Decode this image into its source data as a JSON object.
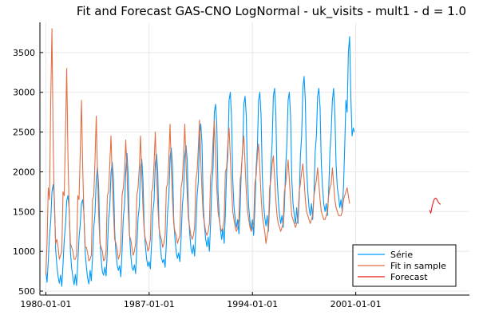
{
  "chart_data": {
    "type": "line",
    "title": "Fit and Forecast GAS-CNO LogNormal - uk_visits - mult1 - d = 1.0",
    "xlabel": "",
    "ylabel": "",
    "x_ticks": [
      "1980-01-01",
      "1987-01-01",
      "1994-01-01",
      "2001-01-01"
    ],
    "x_tick_years": [
      1980,
      1987,
      1994,
      2001
    ],
    "xlim": [
      1979.6,
      2008.7
    ],
    "y_ticks": [
      500,
      1000,
      1500,
      2000,
      2500,
      3000,
      3500
    ],
    "ylim": [
      450,
      3880
    ],
    "grid": true,
    "legend_position": "bottom-right",
    "series": [
      {
        "name": "Série",
        "color": "#009AFA",
        "x_start": 1980.0,
        "x_step": 0.08333,
        "values": [
          760,
          610,
          880,
          1200,
          1380,
          1750,
          1840,
          1660,
          1020,
          820,
          680,
          600,
          700,
          560,
          840,
          1150,
          1330,
          1640,
          1700,
          1530,
          1000,
          790,
          670,
          580,
          710,
          570,
          860,
          1170,
          1340,
          1600,
          1650,
          1480,
          990,
          800,
          660,
          590,
          760,
          630,
          930,
          1300,
          1480,
          1900,
          2060,
          1800,
          1150,
          900,
          740,
          700,
          800,
          690,
          1000,
          1400,
          1560,
          1990,
          2120,
          1920,
          1250,
          980,
          830,
          760,
          820,
          680,
          1010,
          1420,
          1580,
          2000,
          2230,
          1950,
          1230,
          970,
          800,
          760,
          830,
          720,
          1060,
          1420,
          1560,
          2050,
          2160,
          1900,
          1300,
          1060,
          900,
          810,
          870,
          780,
          1100,
          1480,
          1640,
          2100,
          2220,
          2000,
          1330,
          1100,
          920,
          860,
          900,
          800,
          1100,
          1500,
          1670,
          2180,
          2300,
          2080,
          1400,
          1160,
          990,
          910,
          980,
          870,
          1170,
          1580,
          1750,
          2200,
          2330,
          2140,
          1480,
          1220,
          1040,
          970,
          1080,
          940,
          1280,
          1700,
          1880,
          2450,
          2600,
          2350,
          1590,
          1320,
          1150,
          1060,
          1180,
          1000,
          1360,
          1850,
          2050,
          2750,
          2850,
          2600,
          1760,
          1440,
          1270,
          1150,
          1290,
          1100,
          1480,
          2000,
          2200,
          2900,
          3000,
          2700,
          1900,
          1560,
          1400,
          1300,
          1400,
          1220,
          1540,
          2050,
          2250,
          2850,
          2950,
          2700,
          1900,
          1550,
          1380,
          1280,
          1400,
          1200,
          1550,
          2050,
          2300,
          2900,
          3000,
          2720,
          1950,
          1600,
          1430,
          1320,
          1450,
          1250,
          1600,
          2100,
          2350,
          2950,
          3050,
          2750,
          1950,
          1650,
          1450,
          1350,
          1450,
          1300,
          1560,
          2050,
          2350,
          2900,
          3000,
          2700,
          1900,
          1600,
          1450,
          1350,
          1550,
          1350,
          1650,
          2200,
          2450,
          3050,
          3200,
          2900,
          2050,
          1750,
          1550,
          1450,
          1600,
          1400,
          1700,
          2250,
          2450,
          2950,
          3050,
          2800,
          2100,
          1800,
          1600,
          1500,
          1600,
          1450,
          1760,
          2250,
          2500,
          2900,
          3050,
          2750,
          2100,
          1800,
          1700,
          1550,
          1650,
          1500,
          1800,
          2300,
          2900,
          2750,
          3500,
          3700,
          2950,
          2450,
          2550,
          2500
        ]
      },
      {
        "name": "Fit in sample",
        "color": "#E26F46",
        "x_start": 1980.0,
        "x_step": 0.08333,
        "values": [
          700,
          1100,
          1800,
          1650,
          2900,
          3800,
          2300,
          1550,
          1100,
          1150,
          1050,
          900,
          950,
          1000,
          1750,
          1700,
          2500,
          3300,
          2200,
          1500,
          1100,
          1050,
          1000,
          900,
          900,
          950,
          1700,
          1650,
          2250,
          2900,
          2050,
          1450,
          1050,
          1050,
          980,
          880,
          900,
          950,
          1650,
          1700,
          2150,
          2700,
          2000,
          1450,
          1100,
          1050,
          1000,
          880,
          900,
          1000,
          1700,
          1750,
          2100,
          2450,
          1900,
          1500,
          1150,
          1100,
          1020,
          900,
          950,
          1050,
          1700,
          1800,
          2000,
          2400,
          2000,
          1500,
          1200,
          1150,
          1050,
          950,
          1000,
          1100,
          1700,
          1800,
          2050,
          2450,
          1950,
          1550,
          1250,
          1150,
          1100,
          1000,
          1050,
          1150,
          1750,
          1800,
          2100,
          2500,
          2000,
          1600,
          1300,
          1200,
          1150,
          1050,
          1100,
          1200,
          1800,
          1850,
          2150,
          2600,
          2050,
          1650,
          1350,
          1250,
          1200,
          1100,
          1150,
          1200,
          1800,
          1900,
          2200,
          2600,
          2100,
          1700,
          1400,
          1300,
          1200,
          1150,
          1200,
          1300,
          1900,
          2000,
          2300,
          2650,
          2150,
          1750,
          1450,
          1350,
          1250,
          1200,
          1250,
          1350,
          1950,
          2050,
          2400,
          2650,
          2200,
          1800,
          1500,
          1400,
          1300,
          1250,
          1300,
          1400,
          2000,
          2050,
          2350,
          2550,
          2200,
          1800,
          1500,
          1400,
          1300,
          1250,
          1300,
          1400,
          1900,
          2000,
          2300,
          2450,
          2100,
          1750,
          1500,
          1400,
          1300,
          1250,
          1300,
          1350,
          1850,
          1950,
          2200,
          2350,
          2050,
          1700,
          1450,
          1350,
          1250,
          1100,
          1200,
          1300,
          1800,
          1900,
          2100,
          2200,
          1950,
          1650,
          1450,
          1350,
          1300,
          1250,
          1300,
          1350,
          1750,
          1850,
          2000,
          2150,
          1900,
          1650,
          1450,
          1400,
          1350,
          1300,
          1350,
          1400,
          1750,
          1850,
          2000,
          2100,
          1900,
          1650,
          1500,
          1450,
          1400,
          1350,
          1400,
          1450,
          1700,
          1800,
          1900,
          2050,
          1850,
          1650,
          1500,
          1450,
          1400,
          1400,
          1450,
          1500,
          1700,
          1800,
          1850,
          2050,
          1850,
          1650,
          1550,
          1500,
          1450,
          1450,
          1450,
          1500,
          1650,
          1700,
          1750,
          1800,
          1700,
          1600
        ]
      },
      {
        "name": "Forecast",
        "color": "#E8231E",
        "x_start": 2006.0,
        "x_step": 0.08333,
        "values": [
          1520,
          1480,
          1560,
          1620,
          1660,
          1670,
          1650,
          1620,
          1600,
          1590
        ]
      }
    ]
  }
}
